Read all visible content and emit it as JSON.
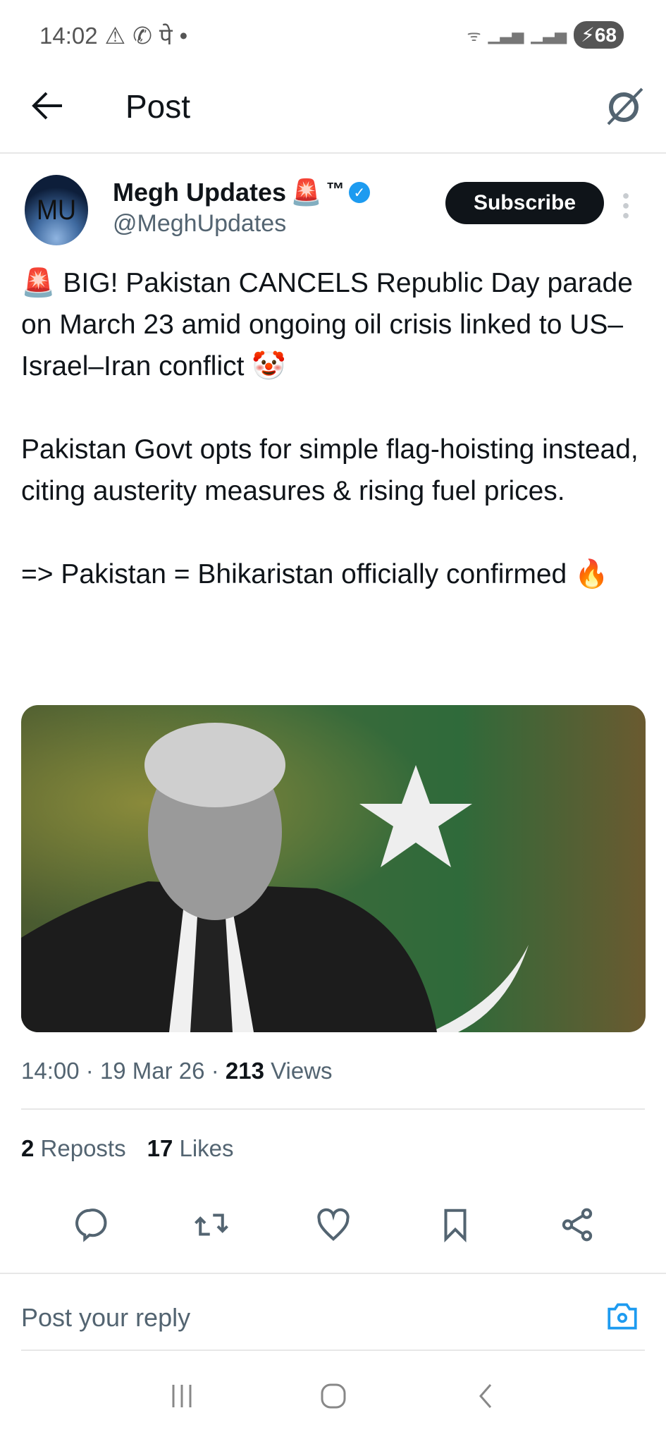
{
  "status_bar": {
    "time": "14:02",
    "notif_icons": [
      "alert-icon",
      "whatsapp-icon",
      "devanagari-icon",
      "dot-icon"
    ],
    "letter": "पे",
    "battery": "68"
  },
  "header": {
    "title": "Post"
  },
  "author": {
    "initials": "MU",
    "name": "Megh Updates",
    "badge_emoji": "🚨",
    "tm": "™",
    "handle": "@MeghUpdates",
    "subscribe_label": "Subscribe"
  },
  "post": {
    "paragraphs": [
      "🚨 BIG! Pakistan CANCELS Republic Day parade on March 23 amid ongoing oil crisis linked to US–Israel–Iran conflict 🤡",
      "Pakistan Govt opts for simple flag-hoisting instead, citing austerity measures & rising fuel prices.",
      "=> Pakistan = Bhikaristan officially confirmed 🔥"
    ]
  },
  "meta": {
    "time": "14:00",
    "date": "19 Mar 26",
    "views_count": "213",
    "views_label": "Views",
    "sep": "·"
  },
  "counts": {
    "reposts": "2",
    "reposts_label": "Reposts",
    "likes": "17",
    "likes_label": "Likes"
  },
  "reply": {
    "placeholder": "Post your reply"
  },
  "colors": {
    "accent": "#1d9bf0",
    "text": "#0f1419",
    "muted": "#536471"
  }
}
